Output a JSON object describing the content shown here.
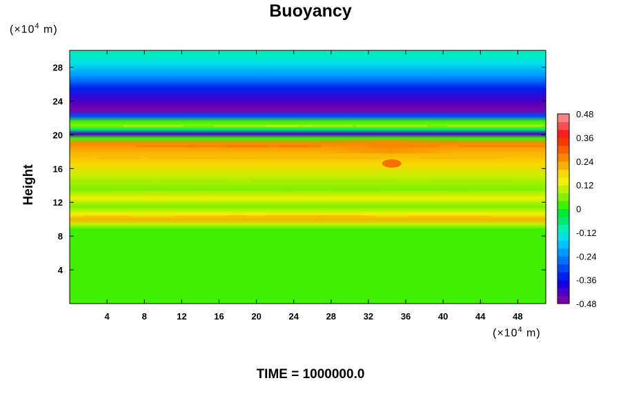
{
  "chart_data": {
    "type": "heatmap",
    "title": "Buoyancy",
    "ylabel": "Height",
    "xlabel": "",
    "x_unit_label": "(×10",
    "x_unit_exp": "4",
    "x_unit_suffix": " m)",
    "y_unit_label": "(×10",
    "y_unit_exp": "4",
    "y_unit_suffix": " m)",
    "xlim": [
      0,
      51
    ],
    "ylim": [
      0,
      30
    ],
    "x_ticks": [
      4,
      8,
      12,
      16,
      20,
      24,
      28,
      32,
      36,
      40,
      44,
      48
    ],
    "y_ticks": [
      4,
      8,
      12,
      16,
      20,
      24,
      28
    ],
    "colorbar": {
      "range": [
        -0.48,
        0.48
      ],
      "tick_labels": [
        "0.48",
        "0.36",
        "0.24",
        "0.12",
        "0",
        "-0.12",
        "-0.24",
        "-0.36",
        "-0.48"
      ],
      "tick_values": [
        0.48,
        0.36,
        0.24,
        0.12,
        0,
        -0.12,
        -0.24,
        -0.36,
        -0.48
      ]
    },
    "horizontal_profile": [
      {
        "height": 0,
        "value": 0.0
      },
      {
        "height": 8.8,
        "value": 0.01
      },
      {
        "height": 9.4,
        "value": 0.1
      },
      {
        "height": 10.0,
        "value": 0.2
      },
      {
        "height": 10.6,
        "value": 0.12
      },
      {
        "height": 11.5,
        "value": 0.06
      },
      {
        "height": 12.5,
        "value": 0.13
      },
      {
        "height": 13.5,
        "value": 0.06
      },
      {
        "height": 15.0,
        "value": 0.1
      },
      {
        "height": 16.5,
        "value": 0.18
      },
      {
        "height": 18.0,
        "value": 0.21
      },
      {
        "height": 19.0,
        "value": 0.26
      },
      {
        "height": 19.6,
        "value": 0.0
      },
      {
        "height": 20.1,
        "value": -0.42
      },
      {
        "height": 20.6,
        "value": -0.05
      },
      {
        "height": 21.1,
        "value": 0.08
      },
      {
        "height": 21.6,
        "value": 0.0
      },
      {
        "height": 22.2,
        "value": -0.3
      },
      {
        "height": 23.0,
        "value": -0.46
      },
      {
        "height": 24.0,
        "value": -0.4
      },
      {
        "height": 25.5,
        "value": -0.33
      },
      {
        "height": 27.0,
        "value": -0.22
      },
      {
        "height": 28.5,
        "value": -0.14
      },
      {
        "height": 30.0,
        "value": -0.1
      }
    ]
  },
  "footer": {
    "time_label": "TIME = 1000000.0"
  },
  "colors": {
    "palette": [
      "#7a00a8",
      "#4800c8",
      "#1400e0",
      "#0020f0",
      "#0048f8",
      "#0070ff",
      "#0098ff",
      "#00c0ff",
      "#00e0e8",
      "#00f0b0",
      "#00e870",
      "#00e830",
      "#40f000",
      "#80f000",
      "#c0f000",
      "#f0f000",
      "#f8d800",
      "#f8b000",
      "#f88800",
      "#f86000",
      "#f83800",
      "#f82020",
      "#f85050",
      "#f88080"
    ]
  }
}
